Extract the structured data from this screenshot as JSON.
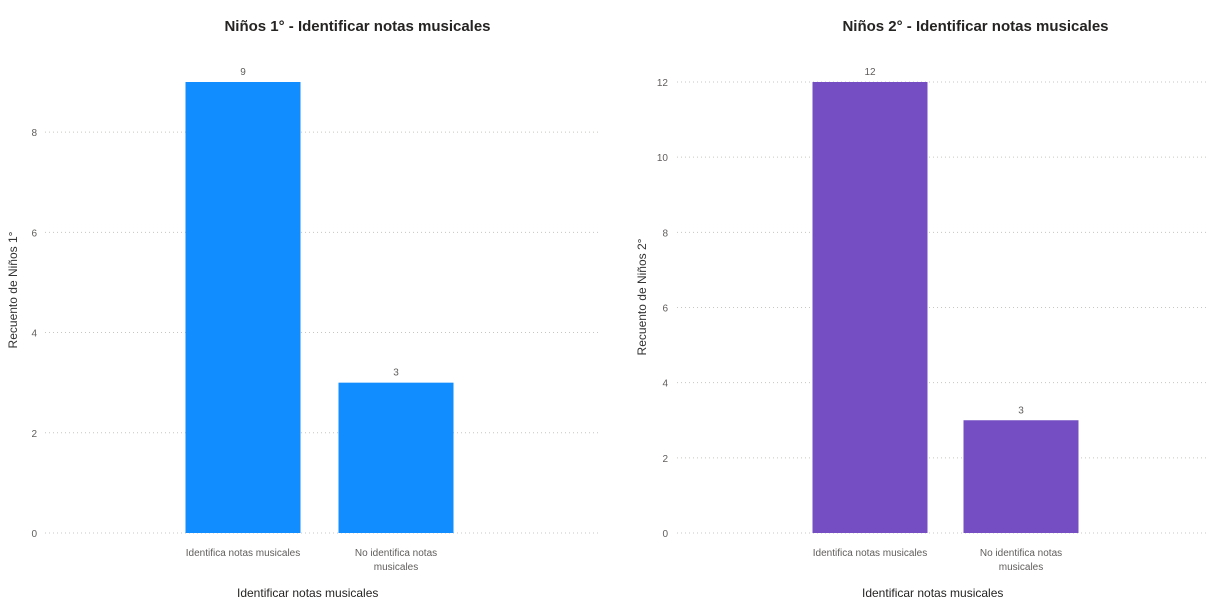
{
  "chart_data": [
    {
      "type": "bar",
      "title": "Niños 1° - Identificar notas musicales",
      "xlabel": "Identificar notas musicales",
      "ylabel": "Recuento de Niños 1°",
      "categories": [
        "Identifica notas musicales",
        "No identifica notas musicales"
      ],
      "category_lines": [
        [
          "Identifica notas musicales"
        ],
        [
          "No identifica notas",
          "musicales"
        ]
      ],
      "values": [
        9,
        3
      ],
      "data_labels": [
        "9",
        "3"
      ],
      "ylim": [
        0,
        9
      ],
      "yticks": [
        0,
        2,
        4,
        6,
        8
      ],
      "grid": true,
      "color": "#118DFF"
    },
    {
      "type": "bar",
      "title": "Niños 2° - Identificar notas musicales",
      "xlabel": "Identificar notas musicales",
      "ylabel": "Recuento de Niños 2°",
      "categories": [
        "Identifica notas musicales",
        "No identifica notas musicales"
      ],
      "category_lines": [
        [
          "Identifica notas musicales"
        ],
        [
          "No identifica notas",
          "musicales"
        ]
      ],
      "values": [
        12,
        3
      ],
      "data_labels": [
        "12",
        "3"
      ],
      "ylim": [
        0,
        12
      ],
      "yticks": [
        0,
        2,
        4,
        6,
        8,
        10,
        12
      ],
      "grid": true,
      "color": "#744EC2"
    }
  ]
}
